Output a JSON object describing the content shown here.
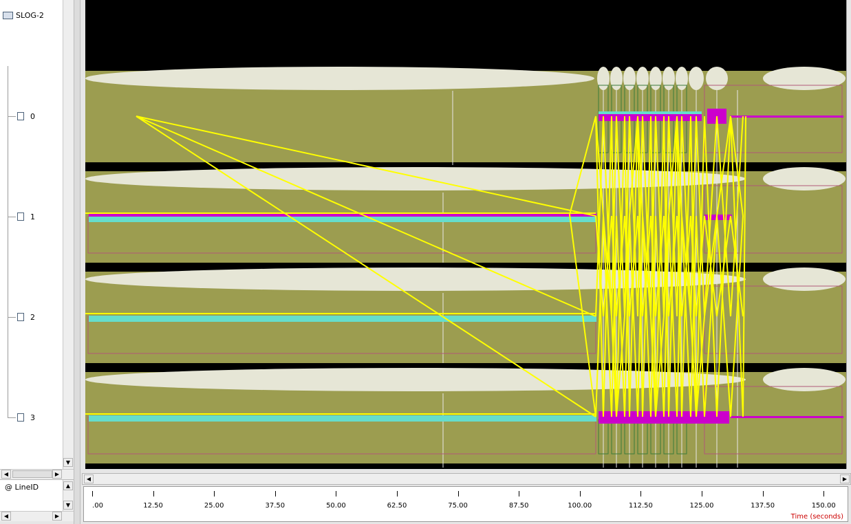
{
  "tree": {
    "root_label": "SLOG-2",
    "nodes": [
      {
        "label": "0"
      },
      {
        "label": "1"
      },
      {
        "label": "2"
      },
      {
        "label": "3"
      }
    ]
  },
  "lineid": {
    "label": "@ LineID"
  },
  "time_axis": {
    "label": "Time (seconds)",
    "ticks": [
      ".00",
      "12.50",
      "25.00",
      "37.50",
      "50.00",
      "62.50",
      "75.00",
      "87.50",
      "100.00",
      "112.50",
      "125.00",
      "137.50",
      "150.00"
    ]
  },
  "colors": {
    "timeline_bg": "#9c9d50",
    "canvas_bg": "#000000",
    "ellipse": "#e8e8d8",
    "arrow": "#ffff00",
    "state_magenta": "#cc00cc",
    "state_cyan": "#66ddcc",
    "state_outline": "#b05070"
  },
  "icons": {
    "folder": "folder-icon",
    "document": "document-icon"
  }
}
